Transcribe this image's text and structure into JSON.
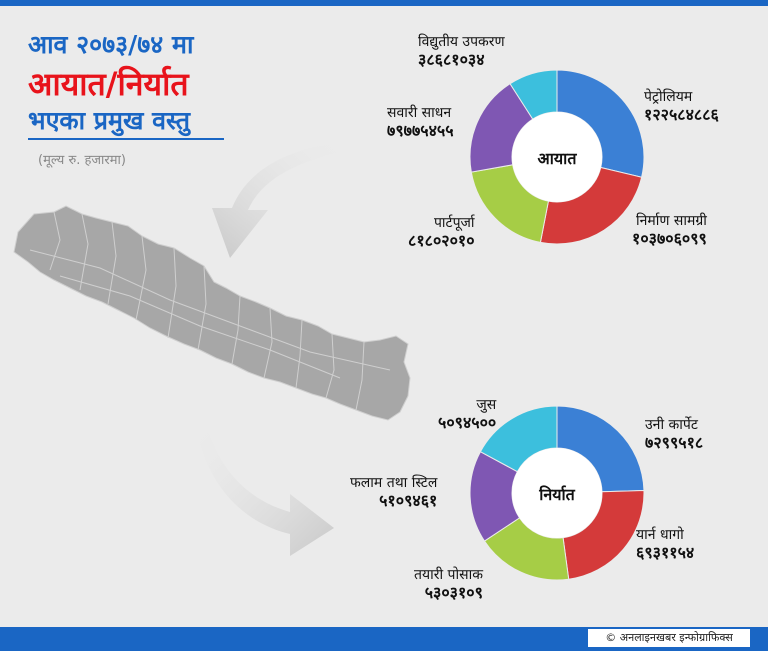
{
  "title": {
    "line1": "आव २०७३/७४ मा",
    "line2": "आयात/निर्यात",
    "line3": "भएका प्रमुख वस्तु",
    "note": "(मूल्य रु. हजारमा)"
  },
  "credit": "© अनलाइनखबर इन्फोग्राफिक्स",
  "colors": {
    "blue": "#3b80d5",
    "red": "#d43a3a",
    "green": "#a6cd46",
    "purple": "#7f57b3",
    "cyan": "#3cbfdd",
    "brand": "#1a66c4",
    "accent": "#e8131b"
  },
  "chart_data": [
    {
      "type": "pie",
      "center_label": "आयात",
      "slices": [
        {
          "label": "पेट्रोलियम",
          "value_text": "१२२५८४८८६",
          "value": 122584886,
          "color": "#3b80d5"
        },
        {
          "label": "निर्माण सामग्री",
          "value_text": "१०३७०६०९९",
          "value": 103706099,
          "color": "#d43a3a"
        },
        {
          "label": "पार्टपूर्जा",
          "value_text": "८१८०२०१०",
          "value": 81802010,
          "color": "#a6cd46"
        },
        {
          "label": "सवारी साधन",
          "value_text": "७९७७५४५५",
          "value": 79775455,
          "color": "#7f57b3"
        },
        {
          "label": "विद्युतीय उपकरण",
          "value_text": "३८६८१०३४",
          "value": 38681034,
          "color": "#3cbfdd"
        }
      ]
    },
    {
      "type": "pie",
      "center_label": "निर्यात",
      "slices": [
        {
          "label": "उनी कार्पेट",
          "value_text": "७२९९५१८",
          "value": 7299518,
          "color": "#3b80d5"
        },
        {
          "label": "यार्न धागो",
          "value_text": "६९३११५४",
          "value": 6931154,
          "color": "#d43a3a"
        },
        {
          "label": "तयारी पोसाक",
          "value_text": "५३०३१०९",
          "value": 5303109,
          "color": "#a6cd46"
        },
        {
          "label": "फलाम तथा स्टिल",
          "value_text": "५१०९४६१",
          "value": 5109461,
          "color": "#7f57b3"
        },
        {
          "label": "जुस",
          "value_text": "५०९४५००",
          "value": 5094500,
          "color": "#3cbfdd"
        }
      ]
    }
  ]
}
